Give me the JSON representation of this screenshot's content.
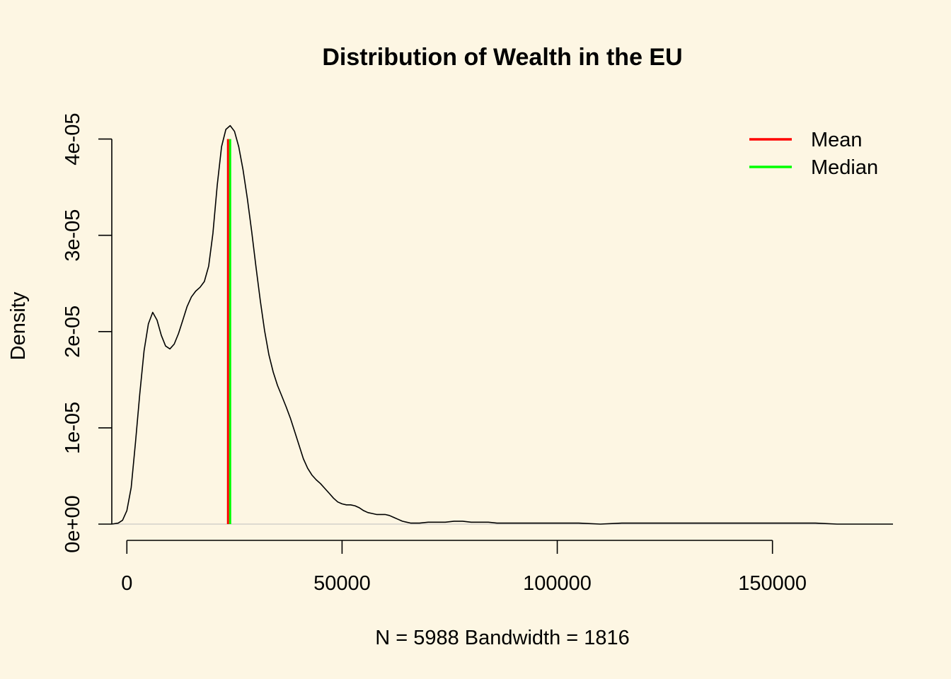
{
  "chart_data": {
    "type": "line",
    "title": "Distribution of Wealth in the EU",
    "xlabel": "N = 5988   Bandwidth = 1816",
    "ylabel": "Density",
    "xlim": [
      -3500,
      178000
    ],
    "ylim": [
      0,
      4.1e-05
    ],
    "x_ticks": [
      0,
      50000,
      100000,
      150000
    ],
    "x_tick_labels": [
      "0",
      "50000",
      "100000",
      "150000"
    ],
    "y_ticks": [
      0,
      1e-05,
      2e-05,
      3e-05,
      4e-05
    ],
    "y_tick_labels": [
      "0e+00",
      "1e-05",
      "2e-05",
      "3e-05",
      "4e-05"
    ],
    "grid": false,
    "legend": {
      "position": "top-right",
      "entries": [
        "Mean",
        "Median"
      ]
    },
    "colors": {
      "density": "#000000",
      "mean": "#FF0000",
      "median": "#00FF00",
      "background": "#FDF6E3"
    },
    "series": [
      {
        "x": [
          -3500,
          -2000,
          -1000,
          0,
          1000,
          2000,
          3000,
          4000,
          5000,
          6000,
          7000,
          8000,
          9000,
          10000,
          11000,
          12000,
          13000,
          14000,
          15000,
          16000,
          17000,
          18000,
          19000,
          20000,
          21000,
          22000,
          23000,
          24000,
          25000,
          26000,
          27000,
          28000,
          29000,
          30000,
          31000,
          32000,
          33000,
          34000,
          35000,
          36000,
          37000,
          38000,
          39000,
          40000,
          41000,
          42000,
          43000,
          44000,
          45000,
          46000,
          47000,
          48000,
          49000,
          50000,
          51000,
          52000,
          53000,
          54000,
          55000,
          56000,
          57000,
          58000,
          59000,
          60000,
          61000,
          62000,
          63000,
          64000,
          65000,
          66000,
          67000,
          68000,
          70000,
          72000,
          74000,
          76000,
          78000,
          80000,
          82000,
          84000,
          86000,
          88000,
          90000,
          95000,
          100000,
          105000,
          110000,
          115000,
          120000,
          125000,
          130000,
          135000,
          140000,
          145000,
          150000,
          155000,
          160000,
          165000,
          170000,
          175000,
          178000
        ],
        "y": [
          0.0,
          1e-07,
          4e-07,
          1.4e-06,
          3.8e-06,
          8.5e-06,
          1.35e-05,
          1.8e-05,
          2.08e-05,
          2.2e-05,
          2.12e-05,
          1.96e-05,
          1.85e-05,
          1.82e-05,
          1.87e-05,
          1.98e-05,
          2.12e-05,
          2.26e-05,
          2.36e-05,
          2.42e-05,
          2.46e-05,
          2.52e-05,
          2.68e-05,
          3.02e-05,
          3.52e-05,
          3.92e-05,
          4.1e-05,
          4.14e-05,
          4.08e-05,
          3.92e-05,
          3.68e-05,
          3.38e-05,
          3.04e-05,
          2.67e-05,
          2.32e-05,
          2.01e-05,
          1.76e-05,
          1.58e-05,
          1.44e-05,
          1.33e-05,
          1.22e-05,
          1.1e-05,
          9.6e-06,
          8.2e-06,
          6.8e-06,
          5.8e-06,
          5.1e-06,
          4.6e-06,
          4.2e-06,
          3.7e-06,
          3.2e-06,
          2.7e-06,
          2.3e-06,
          2.1e-06,
          2e-06,
          2e-06,
          1.9e-06,
          1.7e-06,
          1.4e-06,
          1.2e-06,
          1.1e-06,
          1e-06,
          1e-06,
          1e-06,
          9e-07,
          7e-07,
          5e-07,
          3e-07,
          2e-07,
          1e-07,
          1e-07,
          1e-07,
          2e-07,
          2e-07,
          2e-07,
          3e-07,
          3e-07,
          2e-07,
          2e-07,
          2e-07,
          1e-07,
          1e-07,
          1e-07,
          1e-07,
          1e-07,
          1e-07,
          0.0,
          1e-07,
          1e-07,
          1e-07,
          1e-07,
          1e-07,
          1e-07,
          1e-07,
          1e-07,
          1e-07,
          1e-07,
          0.0,
          0.0,
          0.0,
          0.0
        ]
      }
    ],
    "vlines": [
      {
        "name": "Mean",
        "x": 23500,
        "y_top": 4e-05,
        "color": "#FF0000"
      },
      {
        "name": "Median",
        "x": 24000,
        "y_top": 4e-05,
        "color": "#00FF00"
      }
    ]
  }
}
